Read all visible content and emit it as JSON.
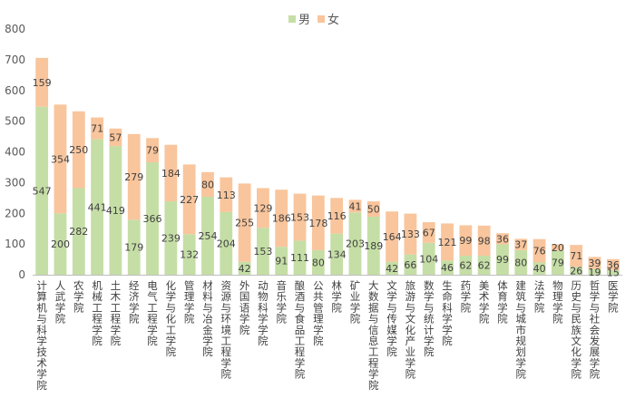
{
  "chart_data": {
    "type": "bar",
    "stacked": true,
    "title": "",
    "xlabel": "",
    "ylabel": "",
    "ylim": [
      0,
      800
    ],
    "yticks": [
      0,
      100,
      200,
      300,
      400,
      500,
      600,
      700,
      800
    ],
    "grid": false,
    "legend": "top-center",
    "categories": [
      "计算机与科学技术学院",
      "人武学院",
      "农学院",
      "机械工程学院",
      "土木工程学院",
      "经济学院",
      "电气工程学院",
      "化学与化工学院",
      "管理学院",
      "材料与冶金学院",
      "资源与环境工程学院",
      "外国语学院",
      "动物科学学院",
      "音乐学院",
      "酿酒与食品工程学院",
      "公共管理学院",
      "林学院",
      "矿业学院",
      "大数据与信息工程学院",
      "文学与传媒学院",
      "旅游与文化产业学院",
      "数学与统计学院",
      "生命科学学院",
      "药学院",
      "美术学院",
      "体育学院",
      "建筑与城市规划学院",
      "法学院",
      "物理学院",
      "历史与民族文化学院",
      "哲学与社会发展学院",
      "医学院"
    ],
    "series": [
      {
        "name": "男",
        "color": "#c5dea6",
        "values": [
          547,
          200,
          282,
          441,
          419,
          179,
          366,
          239,
          132,
          254,
          204,
          42,
          153,
          91,
          111,
          80,
          134,
          203,
          189,
          42,
          66,
          104,
          46,
          62,
          62,
          99,
          80,
          40,
          79,
          26,
          19,
          15
        ]
      },
      {
        "name": "女",
        "color": "#f9c59c",
        "values": [
          159,
          354,
          250,
          71,
          57,
          279,
          79,
          184,
          227,
          80,
          113,
          255,
          129,
          186,
          153,
          178,
          116,
          41,
          50,
          164,
          133,
          67,
          121,
          99,
          98,
          36,
          37,
          76,
          20,
          71,
          39,
          36
        ]
      }
    ]
  }
}
